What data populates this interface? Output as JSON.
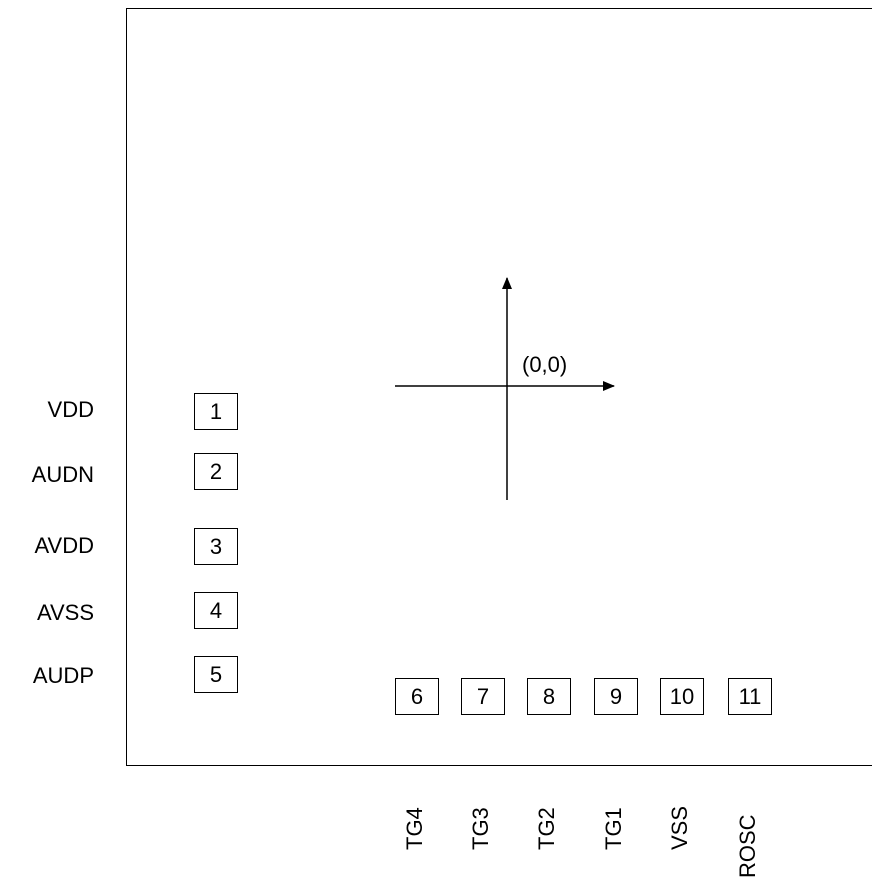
{
  "origin_label": "(0,0)",
  "left_pads": [
    {
      "number": "1",
      "label": "VDD"
    },
    {
      "number": "2",
      "label": "AUDN"
    },
    {
      "number": "3",
      "label": "AVDD"
    },
    {
      "number": "4",
      "label": "AVSS"
    },
    {
      "number": "5",
      "label": "AUDP"
    }
  ],
  "bottom_pads": [
    {
      "number": "6",
      "label": "TG4"
    },
    {
      "number": "7",
      "label": "TG3"
    },
    {
      "number": "8",
      "label": "TG2"
    },
    {
      "number": "9",
      "label": "TG1"
    },
    {
      "number": "10",
      "label": "VSS"
    },
    {
      "number": "11",
      "label": "ROSC"
    }
  ]
}
